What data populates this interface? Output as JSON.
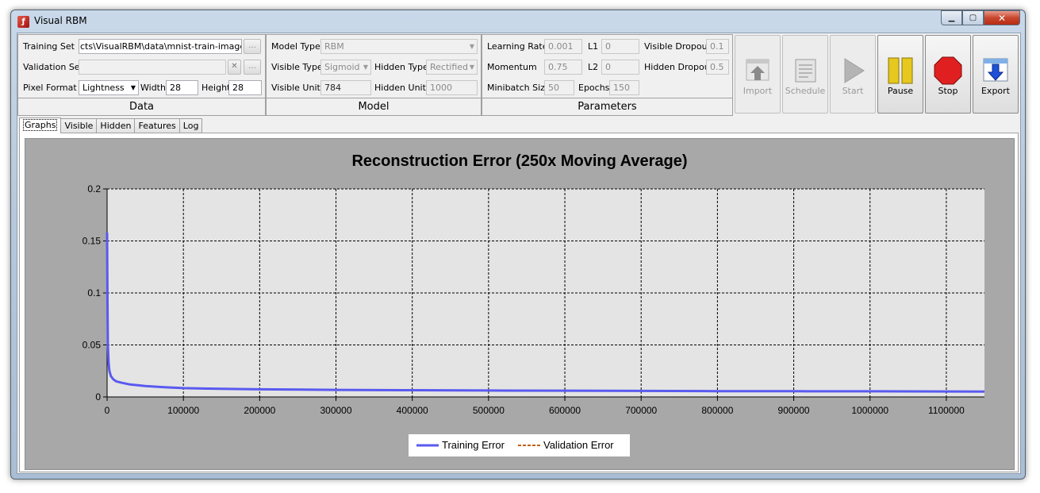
{
  "window": {
    "title": "Visual RBM",
    "minimize_glyph": "▁",
    "maximize_glyph": "▢",
    "close_glyph": "✕"
  },
  "data_group": {
    "title": "Data",
    "training_set_label": "Training Set",
    "training_set_value": "cts\\VisualRBM\\data\\mnist-train-images.idx",
    "validation_set_label": "Validation Set",
    "validation_set_value": "",
    "browse_glyph": "...",
    "clear_glyph": "✕",
    "pixel_format_label": "Pixel Format",
    "pixel_format_value": "Lightness",
    "width_label": "Width",
    "width_value": "28",
    "height_label": "Height",
    "height_value": "28"
  },
  "model_group": {
    "title": "Model",
    "model_type_label": "Model Type",
    "model_type_value": "RBM",
    "visible_type_label": "Visible Type",
    "visible_type_value": "Sigmoid",
    "hidden_type_label": "Hidden Type",
    "hidden_type_value": "Rectified",
    "visible_units_label": "Visible Units",
    "visible_units_value": "784",
    "hidden_units_label": "Hidden Units",
    "hidden_units_value": "1000"
  },
  "parameters_group": {
    "title": "Parameters",
    "learning_rate_label": "Learning Rate",
    "learning_rate_value": "0.001",
    "l1_label": "L1",
    "l1_value": "0",
    "visible_dropout_label": "Visible Dropout",
    "visible_dropout_value": "0.1",
    "momentum_label": "Momentum",
    "momentum_value": "0.75",
    "l2_label": "L2",
    "l2_value": "0",
    "hidden_dropout_label": "Hidden Dropout",
    "hidden_dropout_value": "0.5",
    "minibatch_label": "Minibatch Size",
    "minibatch_value": "50",
    "epochs_label": "Epochs",
    "epochs_value": "150"
  },
  "toolbar": {
    "import_label": "Import",
    "schedule_label": "Schedule",
    "start_label": "Start",
    "pause_label": "Pause",
    "stop_label": "Stop",
    "export_label": "Export"
  },
  "tabs": [
    {
      "label": "Graphs",
      "selected": true
    },
    {
      "label": "Visible",
      "selected": false
    },
    {
      "label": "Hidden",
      "selected": false
    },
    {
      "label": "Features",
      "selected": false
    },
    {
      "label": "Log",
      "selected": false
    }
  ],
  "colors": {
    "training": "#5a5af0",
    "validation": "#c0601a",
    "plot_bg": "#e4e4e4",
    "panel_bg": "#a8a8a8",
    "stop_red": "#e02020",
    "pause_yellow": "#e6c81e",
    "export_blue": "#1e50d8"
  },
  "chart_data": {
    "type": "line",
    "title": "Reconstruction Error (250x Moving Average)",
    "xlabel": "",
    "ylabel": "",
    "xlim": [
      0,
      1150000
    ],
    "ylim": [
      0,
      0.2
    ],
    "x_ticks": [
      0,
      100000,
      200000,
      300000,
      400000,
      500000,
      600000,
      700000,
      800000,
      900000,
      1000000,
      1100000
    ],
    "y_ticks": [
      0,
      0.05,
      0.1,
      0.15,
      0.2
    ],
    "y_tick_labels": [
      "0",
      "0.05",
      "0.1",
      "0.15",
      "0.2"
    ],
    "grid": true,
    "legend_position": "bottom-center",
    "series": [
      {
        "name": "Training Error",
        "style": "solid",
        "x": [
          0,
          500,
          1000,
          2000,
          3000,
          5000,
          8000,
          12000,
          20000,
          30000,
          50000,
          75000,
          100000,
          150000,
          200000,
          300000,
          400000,
          500000,
          600000,
          700000,
          800000,
          900000,
          1000000,
          1100000,
          1150000
        ],
        "y": [
          0.158,
          0.09,
          0.05,
          0.033,
          0.025,
          0.02,
          0.017,
          0.015,
          0.0135,
          0.012,
          0.0105,
          0.0093,
          0.0085,
          0.0078,
          0.0073,
          0.0068,
          0.0065,
          0.0062,
          0.006,
          0.0058,
          0.0056,
          0.0055,
          0.0054,
          0.0053,
          0.0052
        ]
      },
      {
        "name": "Validation Error",
        "style": "dashed",
        "x": [],
        "y": []
      }
    ]
  }
}
